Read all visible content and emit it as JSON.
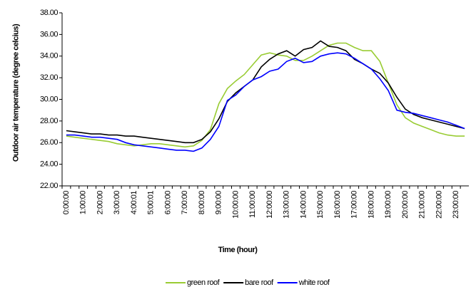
{
  "chart_data": {
    "type": "line",
    "y_label": "Outdoor air temperature (degree celcius)",
    "x_label": "Time (hour)",
    "categories": [
      "0:00:00",
      null,
      "1:00:00",
      null,
      "2:00:00",
      null,
      "3:00:00",
      null,
      "4:00:01",
      null,
      "5:00:01",
      null,
      "6:00:00",
      null,
      "7:00:00",
      null,
      "8:00:00",
      null,
      "9:00:00",
      null,
      "10:00:00",
      null,
      "11:00:00",
      null,
      "12:00:00",
      null,
      "13:00:00",
      null,
      "14:00:00",
      null,
      "15:00:00",
      null,
      "16:00:00",
      null,
      "17:00:00",
      null,
      "18:00:00",
      null,
      "19:00:00",
      null,
      "20:00:00",
      null,
      "21:00:00",
      null,
      "22:00:00",
      null,
      "23:00:00",
      null
    ],
    "series": [
      {
        "name": "green roof",
        "color": "#99cc33",
        "values": [
          26.6,
          26.5,
          26.4,
          26.3,
          26.2,
          26.1,
          25.9,
          25.8,
          25.7,
          25.8,
          25.9,
          25.9,
          25.8,
          25.7,
          25.6,
          25.7,
          26.2,
          27.2,
          29.6,
          31.0,
          31.7,
          32.3,
          33.2,
          34.1,
          34.3,
          34.1,
          34.0,
          33.6,
          33.6,
          34.0,
          34.5,
          35.0,
          35.2,
          35.2,
          34.8,
          34.5,
          34.5,
          33.5,
          31.5,
          29.5,
          28.3,
          27.8,
          27.5,
          27.2,
          26.9,
          26.7,
          26.6,
          26.6
        ]
      },
      {
        "name": "bare roof",
        "color": "#000000",
        "values": [
          27.1,
          27.0,
          26.9,
          26.8,
          26.8,
          26.7,
          26.7,
          26.6,
          26.6,
          26.5,
          26.4,
          26.3,
          26.2,
          26.1,
          26.0,
          26.0,
          26.3,
          27.0,
          28.2,
          29.8,
          30.6,
          31.2,
          31.8,
          33.0,
          33.7,
          34.2,
          34.5,
          34.0,
          34.6,
          34.8,
          35.4,
          34.9,
          34.8,
          34.5,
          33.7,
          33.3,
          32.8,
          32.4,
          31.5,
          30.2,
          29.1,
          28.6,
          28.3,
          28.1,
          27.9,
          27.7,
          27.5,
          27.3
        ]
      },
      {
        "name": "white roof",
        "color": "#0000ff",
        "values": [
          26.7,
          26.7,
          26.6,
          26.5,
          26.5,
          26.4,
          26.3,
          26.0,
          25.8,
          25.7,
          25.6,
          25.5,
          25.4,
          25.3,
          25.3,
          25.2,
          25.5,
          26.3,
          27.5,
          29.9,
          30.4,
          31.2,
          31.8,
          32.1,
          32.6,
          32.8,
          33.5,
          33.8,
          33.4,
          33.5,
          34.0,
          34.2,
          34.3,
          34.2,
          33.8,
          33.3,
          32.8,
          31.9,
          30.8,
          29.0,
          28.8,
          28.7,
          28.5,
          28.3,
          28.1,
          27.9,
          27.6,
          27.3
        ]
      }
    ],
    "ylim": [
      22,
      38
    ],
    "yticks": [
      {
        "value": 22,
        "label": "22.00"
      },
      {
        "value": 24,
        "label": "24.00"
      },
      {
        "value": 26,
        "label": "26.00"
      },
      {
        "value": 28,
        "label": "28.00"
      },
      {
        "value": 30,
        "label": "30.00"
      },
      {
        "value": 32,
        "label": "32.00"
      },
      {
        "value": 34,
        "label": "34.00"
      },
      {
        "value": 36,
        "label": "36.00"
      },
      {
        "value": 38,
        "label": "38.00"
      }
    ],
    "grid": false,
    "legend": "bottom"
  }
}
